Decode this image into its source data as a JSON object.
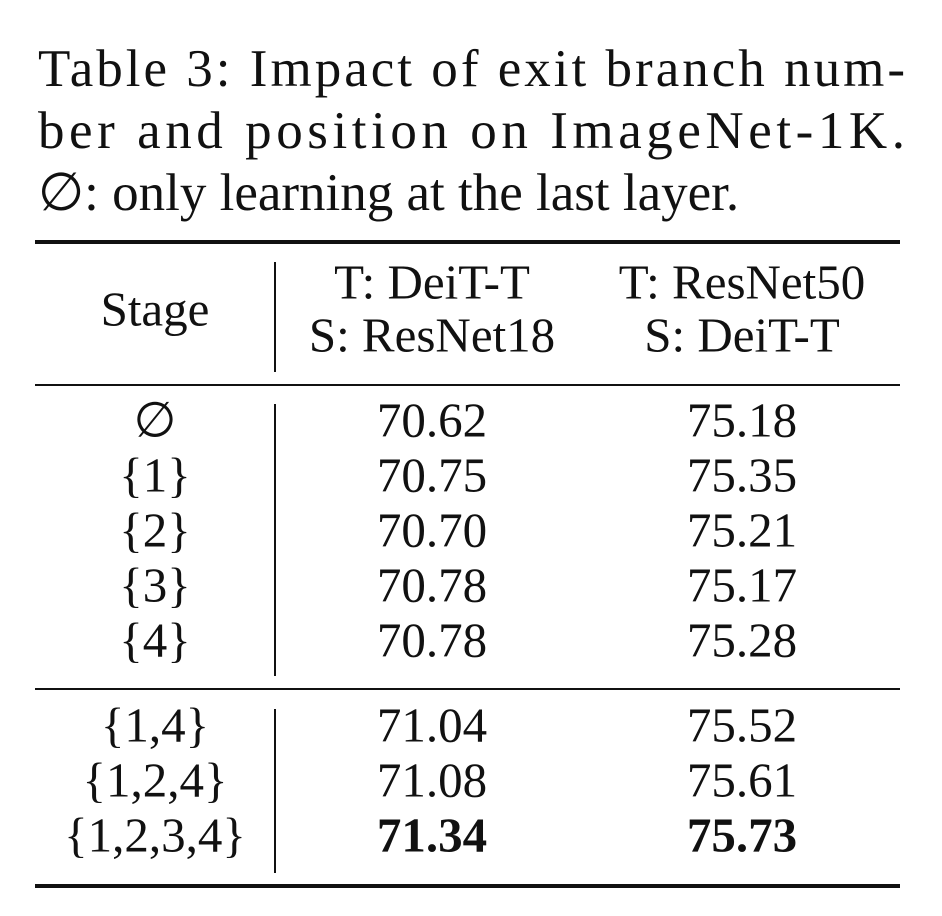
{
  "caption": [
    "Table 3: Impact of exit branch num-",
    "ber and position on ImageNet-1K.",
    "∅: only learning at the last layer."
  ],
  "table": {
    "header": {
      "stage": "Stage",
      "columns": [
        [
          "T: DeiT-T",
          "S: ResNet18"
        ],
        [
          "T: ResNet50",
          "S: DeiT-T"
        ]
      ]
    },
    "groups": [
      [
        [
          "∅",
          "70.62",
          "75.18"
        ],
        [
          "{1}",
          "70.75",
          "75.35"
        ],
        [
          "{2}",
          "70.70",
          "75.21"
        ],
        [
          "{3}",
          "70.78",
          "75.17"
        ],
        [
          "{4}",
          "70.78",
          "75.28"
        ]
      ],
      [
        [
          "{1,4}",
          "71.04",
          "75.52"
        ],
        [
          "{1,2,4}",
          "71.08",
          "75.61"
        ],
        [
          "{1,2,3,4}",
          "71.34",
          "75.73"
        ]
      ]
    ]
  }
}
